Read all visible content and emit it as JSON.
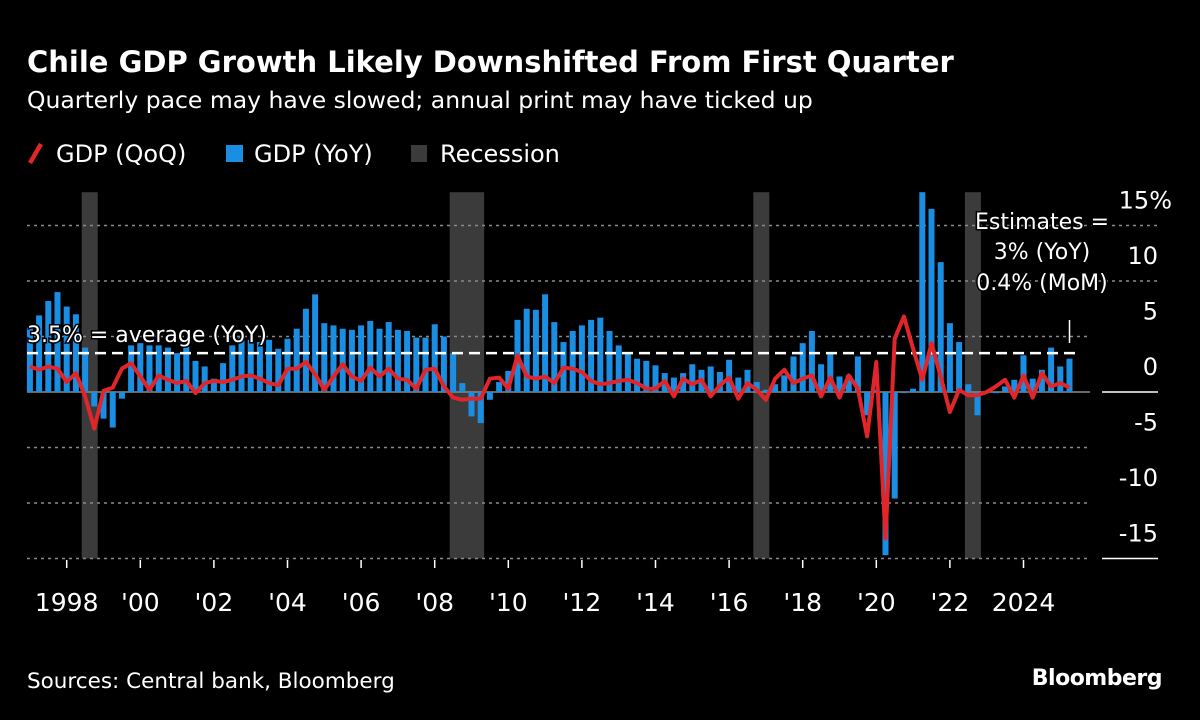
{
  "header": {
    "title": "Chile GDP Growth Likely Downshifted From First Quarter",
    "subtitle": "Quarterly pace may have slowed; annual print may have ticked up"
  },
  "legend": [
    {
      "label": "GDP (QoQ)",
      "icon": "red-line-swatch",
      "color": "#e1262b"
    },
    {
      "label": "GDP (YoY)",
      "icon": "blue-square-swatch",
      "color": "#1a8ee3"
    },
    {
      "label": "Recession",
      "icon": "gray-square-swatch",
      "color": "#3b3b3b"
    }
  ],
  "annotations": {
    "average": "3.5% = average (YoY)",
    "estimates_line1": "Estimates =",
    "estimates_line2": "3% (YoY)",
    "estimates_line3": "0.4% (MoM)"
  },
  "footer": {
    "source": "Sources: Central bank, Bloomberg",
    "logo": "Bloomberg"
  },
  "chart_data": {
    "type": "bar+line",
    "title": "Chile GDP Growth Likely Downshifted From First Quarter",
    "subtitle": "Quarterly pace may have slowed; annual print may have ticked up",
    "x_start": "1997 Q1",
    "x_end": "2025 Q2",
    "frequency": "quarterly",
    "x_tick_labels": [
      "1998",
      "'00",
      "'02",
      "'04",
      "'06",
      "'08",
      "'10",
      "'12",
      "'14",
      "'16",
      "'18",
      "'20",
      "'22",
      "2024"
    ],
    "x_tick_years": [
      1998,
      2000,
      2002,
      2004,
      2006,
      2008,
      2010,
      2012,
      2014,
      2016,
      2018,
      2020,
      2022,
      2024
    ],
    "y_ticks": [
      15,
      10,
      5,
      0,
      -5,
      -10,
      -15
    ],
    "y_tick_labels": [
      "15%",
      "10",
      "5",
      "0",
      "-5",
      "-10",
      "-15"
    ],
    "ylim": [
      -15,
      18
    ],
    "y_axis_side": "right",
    "grid": "horizontal dotted",
    "legend_position": "top-left",
    "average_line": {
      "value": 3.5,
      "label": "3.5% = average (YoY)"
    },
    "estimate_quarter": "2025 Q2",
    "recessions": [
      {
        "start": "1998 Q3",
        "end": "1998 Q4"
      },
      {
        "start": "2008 Q3",
        "end": "2009 Q2"
      },
      {
        "start": "2016 Q4",
        "end": "2017 Q1"
      },
      {
        "start": "2022 Q3",
        "end": "2022 Q4"
      }
    ],
    "series": [
      {
        "name": "GDP (YoY)",
        "type": "bar",
        "color": "#1a8ee3",
        "values": [
          5.8,
          6.9,
          8.2,
          9.0,
          7.7,
          7.0,
          4.0,
          -1.3,
          -2.4,
          -3.2,
          -0.6,
          4.2,
          4.4,
          4.2,
          4.2,
          4.0,
          3.5,
          4.2,
          2.8,
          2.3,
          1.2,
          2.6,
          4.2,
          5.0,
          4.7,
          4.5,
          4.7,
          3.9,
          4.8,
          5.7,
          7.5,
          8.8,
          6.2,
          6.0,
          5.7,
          5.6,
          6.0,
          6.4,
          5.7,
          6.3,
          5.6,
          5.5,
          4.9,
          4.9,
          6.1,
          5.0,
          3.5,
          0.8,
          -2.2,
          -2.8,
          -0.7,
          0.9,
          1.9,
          6.5,
          7.5,
          7.4,
          8.8,
          6.3,
          4.5,
          5.5,
          6.0,
          6.5,
          6.7,
          5.5,
          4.2,
          3.4,
          3.0,
          2.8,
          2.4,
          1.7,
          1.3,
          1.7,
          2.5,
          2.0,
          2.3,
          1.8,
          2.9,
          1.3,
          2.0,
          0.9,
          0.2,
          0.7,
          1.5,
          3.2,
          4.4,
          5.5,
          2.5,
          3.5,
          1.4,
          1.5,
          3.2,
          -2.1,
          0.2,
          -14.7,
          -9.6,
          -0.1,
          0.3,
          18.0,
          16.5,
          11.7,
          6.2,
          4.5,
          0.7,
          -2.1,
          -0.1,
          -0.1,
          0.5,
          1.1,
          3.3,
          1.2,
          2.0,
          4.0,
          2.3,
          3.0
        ]
      },
      {
        "name": "GDP (QoQ)",
        "type": "line",
        "color": "#e1262b",
        "values": [
          2.3,
          2.0,
          2.3,
          2.1,
          0.9,
          1.7,
          -0.4,
          -3.3,
          0.1,
          0.4,
          2.1,
          2.6,
          1.4,
          0.2,
          1.5,
          1.1,
          0.8,
          1.0,
          -0.1,
          0.8,
          1.0,
          0.9,
          1.1,
          1.4,
          1.5,
          1.2,
          0.8,
          0.6,
          2.1,
          2.1,
          2.7,
          1.6,
          0.2,
          1.4,
          2.5,
          1.4,
          1.0,
          2.2,
          1.4,
          2.1,
          1.2,
          1.1,
          0.3,
          2.0,
          2.1,
          0.5,
          -0.5,
          -0.7,
          -0.6,
          -0.6,
          1.2,
          1.3,
          0.3,
          3.3,
          1.4,
          1.2,
          1.4,
          0.8,
          2.2,
          2.1,
          1.8,
          1.0,
          0.7,
          0.8,
          1.0,
          1.1,
          0.8,
          0.3,
          0.3,
          1.0,
          -0.4,
          1.2,
          0.7,
          1.1,
          -0.4,
          0.6,
          1.3,
          -0.6,
          0.8,
          0.2,
          -0.7,
          1.2,
          2.0,
          0.8,
          1.2,
          1.5,
          -0.4,
          1.3,
          -0.5,
          1.5,
          0.3,
          -4.0,
          2.7,
          -13.2,
          4.8,
          6.8,
          3.9,
          1.1,
          4.4,
          1.4,
          -1.8,
          0.2,
          -0.3,
          -0.3,
          0.0,
          0.5,
          1.1,
          -0.5,
          1.5,
          -0.5,
          1.7,
          0.5,
          0.8,
          0.4
        ]
      }
    ]
  }
}
